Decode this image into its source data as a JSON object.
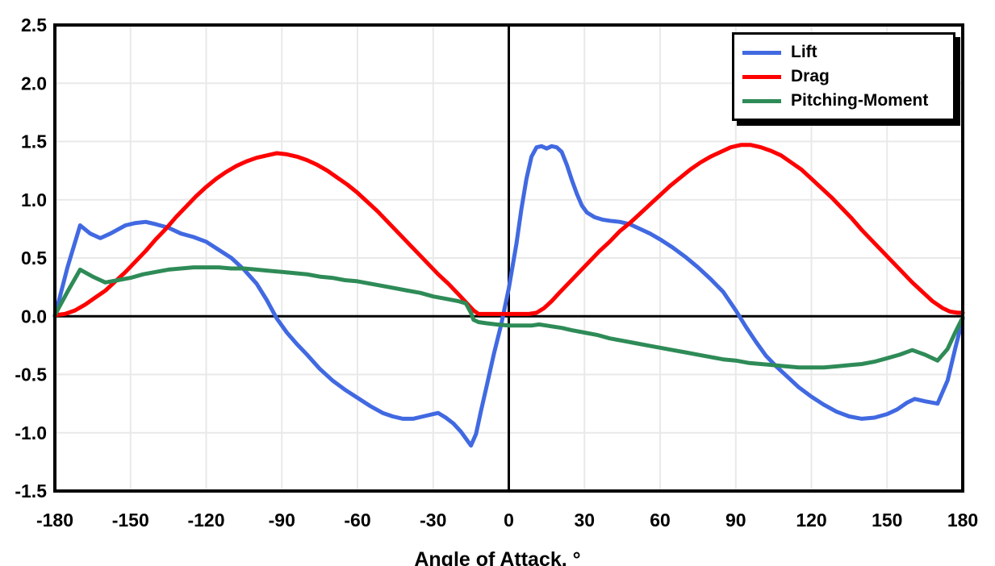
{
  "chart_data": {
    "type": "line",
    "title": "",
    "xlabel": "Angle of Attack, °",
    "ylabel": "",
    "xlim": [
      -180,
      180
    ],
    "ylim": [
      -1.5,
      2.5
    ],
    "grid": true,
    "legend_position": "top-right",
    "zero_axis_lines": true,
    "colors": {
      "background": "#FFFFFF",
      "grid": "#E9E9E9",
      "axis": "#000000"
    },
    "x_ticks": [
      {
        "v": -180,
        "label": "-180"
      },
      {
        "v": -150,
        "label": "-150"
      },
      {
        "v": -120,
        "label": "-120"
      },
      {
        "v": -90,
        "label": "-90"
      },
      {
        "v": -60,
        "label": "-60"
      },
      {
        "v": -30,
        "label": "-30"
      },
      {
        "v": 0,
        "label": "0"
      },
      {
        "v": 30,
        "label": "30"
      },
      {
        "v": 60,
        "label": "60"
      },
      {
        "v": 90,
        "label": "90"
      },
      {
        "v": 120,
        "label": "120"
      },
      {
        "v": 150,
        "label": "150"
      },
      {
        "v": 180,
        "label": "180"
      }
    ],
    "y_ticks": [
      {
        "v": 2.5,
        "label": "2.5"
      },
      {
        "v": 2.0,
        "label": "2.0"
      },
      {
        "v": 1.5,
        "label": "1.5"
      },
      {
        "v": 1.0,
        "label": "1.0"
      },
      {
        "v": 0.5,
        "label": "0.5"
      },
      {
        "v": 0.0,
        "label": "0.0"
      },
      {
        "v": -0.5,
        "label": "-0.5"
      },
      {
        "v": -1.0,
        "label": "-1.0"
      },
      {
        "v": -1.5,
        "label": "-1.5"
      }
    ],
    "series": [
      {
        "name": "Lift",
        "color": "#4169E1",
        "points": [
          [
            -180,
            0.0
          ],
          [
            -175,
            0.42
          ],
          [
            -170,
            0.78
          ],
          [
            -166,
            0.71
          ],
          [
            -162,
            0.67
          ],
          [
            -158,
            0.71
          ],
          [
            -152,
            0.78
          ],
          [
            -148,
            0.8
          ],
          [
            -144,
            0.81
          ],
          [
            -140,
            0.79
          ],
          [
            -135,
            0.76
          ],
          [
            -130,
            0.71
          ],
          [
            -125,
            0.68
          ],
          [
            -120,
            0.64
          ],
          [
            -115,
            0.57
          ],
          [
            -110,
            0.5
          ],
          [
            -105,
            0.4
          ],
          [
            -100,
            0.28
          ],
          [
            -96,
            0.14
          ],
          [
            -92,
            -0.02
          ],
          [
            -88,
            -0.14
          ],
          [
            -84,
            -0.24
          ],
          [
            -80,
            -0.33
          ],
          [
            -75,
            -0.45
          ],
          [
            -70,
            -0.55
          ],
          [
            -65,
            -0.63
          ],
          [
            -60,
            -0.7
          ],
          [
            -55,
            -0.77
          ],
          [
            -50,
            -0.83
          ],
          [
            -46,
            -0.86
          ],
          [
            -42,
            -0.88
          ],
          [
            -38,
            -0.88
          ],
          [
            -34,
            -0.86
          ],
          [
            -30,
            -0.84
          ],
          [
            -28,
            -0.83
          ],
          [
            -25,
            -0.87
          ],
          [
            -22,
            -0.92
          ],
          [
            -19,
            -0.99
          ],
          [
            -16,
            -1.08
          ],
          [
            -15,
            -1.11
          ],
          [
            -13,
            -1.01
          ],
          [
            -11,
            -0.81
          ],
          [
            -9,
            -0.62
          ],
          [
            -6,
            -0.33
          ],
          [
            -3,
            -0.07
          ],
          [
            0,
            0.24
          ],
          [
            3,
            0.62
          ],
          [
            5,
            0.92
          ],
          [
            7,
            1.18
          ],
          [
            9,
            1.37
          ],
          [
            11,
            1.45
          ],
          [
            13,
            1.46
          ],
          [
            15,
            1.44
          ],
          [
            17,
            1.46
          ],
          [
            19,
            1.45
          ],
          [
            21,
            1.41
          ],
          [
            23,
            1.3
          ],
          [
            25,
            1.17
          ],
          [
            27,
            1.05
          ],
          [
            29,
            0.95
          ],
          [
            31,
            0.89
          ],
          [
            34,
            0.85
          ],
          [
            37,
            0.83
          ],
          [
            40,
            0.82
          ],
          [
            44,
            0.81
          ],
          [
            48,
            0.79
          ],
          [
            52,
            0.75
          ],
          [
            56,
            0.71
          ],
          [
            60,
            0.66
          ],
          [
            65,
            0.59
          ],
          [
            70,
            0.51
          ],
          [
            75,
            0.42
          ],
          [
            80,
            0.32
          ],
          [
            85,
            0.21
          ],
          [
            90,
            0.05
          ],
          [
            94,
            -0.09
          ],
          [
            98,
            -0.22
          ],
          [
            102,
            -0.34
          ],
          [
            106,
            -0.43
          ],
          [
            110,
            -0.51
          ],
          [
            115,
            -0.61
          ],
          [
            120,
            -0.69
          ],
          [
            125,
            -0.76
          ],
          [
            130,
            -0.82
          ],
          [
            135,
            -0.86
          ],
          [
            140,
            -0.88
          ],
          [
            145,
            -0.87
          ],
          [
            150,
            -0.84
          ],
          [
            154,
            -0.8
          ],
          [
            158,
            -0.74
          ],
          [
            161,
            -0.71
          ],
          [
            165,
            -0.73
          ],
          [
            170,
            -0.75
          ],
          [
            174,
            -0.55
          ],
          [
            177,
            -0.28
          ],
          [
            180,
            -0.02
          ]
        ]
      },
      {
        "name": "Drag",
        "color": "#FF0000",
        "points": [
          [
            -180,
            0.01
          ],
          [
            -176,
            0.02
          ],
          [
            -172,
            0.05
          ],
          [
            -168,
            0.1
          ],
          [
            -164,
            0.16
          ],
          [
            -160,
            0.22
          ],
          [
            -156,
            0.3
          ],
          [
            -152,
            0.38
          ],
          [
            -148,
            0.47
          ],
          [
            -144,
            0.56
          ],
          [
            -140,
            0.66
          ],
          [
            -136,
            0.75
          ],
          [
            -132,
            0.85
          ],
          [
            -128,
            0.94
          ],
          [
            -124,
            1.03
          ],
          [
            -120,
            1.11
          ],
          [
            -116,
            1.18
          ],
          [
            -112,
            1.24
          ],
          [
            -108,
            1.29
          ],
          [
            -104,
            1.33
          ],
          [
            -100,
            1.36
          ],
          [
            -96,
            1.38
          ],
          [
            -92,
            1.4
          ],
          [
            -88,
            1.39
          ],
          [
            -84,
            1.37
          ],
          [
            -80,
            1.34
          ],
          [
            -76,
            1.3
          ],
          [
            -72,
            1.25
          ],
          [
            -68,
            1.19
          ],
          [
            -64,
            1.13
          ],
          [
            -60,
            1.06
          ],
          [
            -56,
            0.98
          ],
          [
            -52,
            0.9
          ],
          [
            -48,
            0.81
          ],
          [
            -44,
            0.72
          ],
          [
            -40,
            0.63
          ],
          [
            -36,
            0.54
          ],
          [
            -32,
            0.45
          ],
          [
            -28,
            0.36
          ],
          [
            -24,
            0.28
          ],
          [
            -20,
            0.19
          ],
          [
            -17,
            0.12
          ],
          [
            -14,
            0.05
          ],
          [
            -12,
            0.02
          ],
          [
            -8,
            0.02
          ],
          [
            -4,
            0.02
          ],
          [
            0,
            0.02
          ],
          [
            4,
            0.02
          ],
          [
            8,
            0.02
          ],
          [
            11,
            0.03
          ],
          [
            14,
            0.07
          ],
          [
            17,
            0.13
          ],
          [
            20,
            0.2
          ],
          [
            24,
            0.29
          ],
          [
            28,
            0.38
          ],
          [
            32,
            0.47
          ],
          [
            36,
            0.56
          ],
          [
            40,
            0.64
          ],
          [
            44,
            0.73
          ],
          [
            48,
            0.8
          ],
          [
            52,
            0.88
          ],
          [
            56,
            0.96
          ],
          [
            60,
            1.04
          ],
          [
            64,
            1.12
          ],
          [
            68,
            1.19
          ],
          [
            72,
            1.26
          ],
          [
            76,
            1.32
          ],
          [
            80,
            1.37
          ],
          [
            84,
            1.41
          ],
          [
            88,
            1.45
          ],
          [
            92,
            1.47
          ],
          [
            96,
            1.47
          ],
          [
            100,
            1.45
          ],
          [
            104,
            1.42
          ],
          [
            108,
            1.38
          ],
          [
            112,
            1.32
          ],
          [
            116,
            1.26
          ],
          [
            120,
            1.18
          ],
          [
            124,
            1.1
          ],
          [
            128,
            1.02
          ],
          [
            132,
            0.93
          ],
          [
            136,
            0.84
          ],
          [
            140,
            0.74
          ],
          [
            144,
            0.65
          ],
          [
            148,
            0.56
          ],
          [
            152,
            0.47
          ],
          [
            156,
            0.38
          ],
          [
            160,
            0.29
          ],
          [
            164,
            0.21
          ],
          [
            168,
            0.13
          ],
          [
            172,
            0.07
          ],
          [
            175,
            0.04
          ],
          [
            178,
            0.03
          ],
          [
            180,
            0.03
          ]
        ]
      },
      {
        "name": "Pitching-Moment",
        "color": "#2E8B57",
        "points": [
          [
            -180,
            0.01
          ],
          [
            -175,
            0.21
          ],
          [
            -170,
            0.4
          ],
          [
            -165,
            0.34
          ],
          [
            -160,
            0.29
          ],
          [
            -155,
            0.31
          ],
          [
            -150,
            0.33
          ],
          [
            -145,
            0.36
          ],
          [
            -140,
            0.38
          ],
          [
            -135,
            0.4
          ],
          [
            -130,
            0.41
          ],
          [
            -125,
            0.42
          ],
          [
            -120,
            0.42
          ],
          [
            -115,
            0.42
          ],
          [
            -110,
            0.41
          ],
          [
            -105,
            0.41
          ],
          [
            -100,
            0.4
          ],
          [
            -95,
            0.39
          ],
          [
            -90,
            0.38
          ],
          [
            -85,
            0.37
          ],
          [
            -80,
            0.36
          ],
          [
            -75,
            0.34
          ],
          [
            -70,
            0.33
          ],
          [
            -65,
            0.31
          ],
          [
            -60,
            0.3
          ],
          [
            -55,
            0.28
          ],
          [
            -50,
            0.26
          ],
          [
            -45,
            0.24
          ],
          [
            -40,
            0.22
          ],
          [
            -35,
            0.2
          ],
          [
            -30,
            0.17
          ],
          [
            -25,
            0.15
          ],
          [
            -20,
            0.13
          ],
          [
            -17,
            0.11
          ],
          [
            -15,
            0.03
          ],
          [
            -14,
            -0.03
          ],
          [
            -12,
            -0.05
          ],
          [
            -9,
            -0.06
          ],
          [
            -5,
            -0.07
          ],
          [
            0,
            -0.08
          ],
          [
            5,
            -0.08
          ],
          [
            9,
            -0.08
          ],
          [
            12,
            -0.07
          ],
          [
            15,
            -0.08
          ],
          [
            18,
            -0.09
          ],
          [
            21,
            -0.1
          ],
          [
            25,
            -0.12
          ],
          [
            30,
            -0.14
          ],
          [
            35,
            -0.16
          ],
          [
            40,
            -0.19
          ],
          [
            45,
            -0.21
          ],
          [
            50,
            -0.23
          ],
          [
            55,
            -0.25
          ],
          [
            60,
            -0.27
          ],
          [
            65,
            -0.29
          ],
          [
            70,
            -0.31
          ],
          [
            75,
            -0.33
          ],
          [
            80,
            -0.35
          ],
          [
            85,
            -0.37
          ],
          [
            90,
            -0.38
          ],
          [
            95,
            -0.4
          ],
          [
            100,
            -0.41
          ],
          [
            105,
            -0.42
          ],
          [
            110,
            -0.43
          ],
          [
            115,
            -0.44
          ],
          [
            120,
            -0.44
          ],
          [
            125,
            -0.44
          ],
          [
            130,
            -0.43
          ],
          [
            135,
            -0.42
          ],
          [
            140,
            -0.41
          ],
          [
            145,
            -0.39
          ],
          [
            150,
            -0.36
          ],
          [
            155,
            -0.33
          ],
          [
            160,
            -0.29
          ],
          [
            165,
            -0.33
          ],
          [
            170,
            -0.38
          ],
          [
            174,
            -0.28
          ],
          [
            177,
            -0.14
          ],
          [
            180,
            -0.01
          ]
        ]
      }
    ]
  }
}
